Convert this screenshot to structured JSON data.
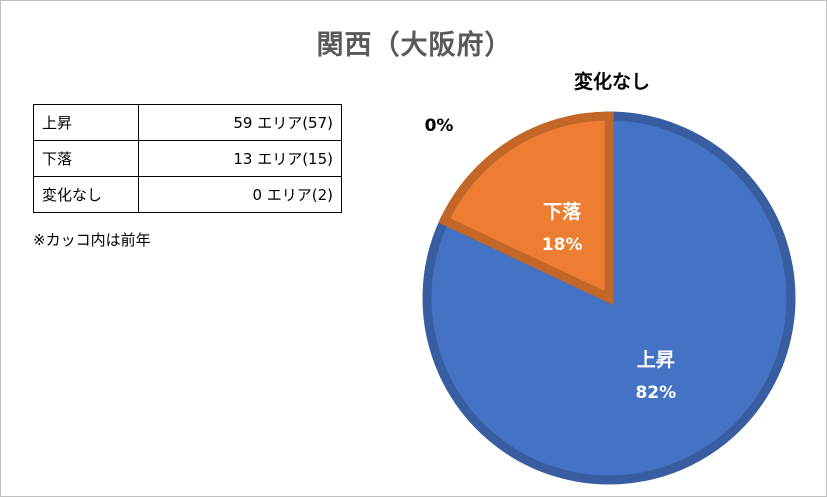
{
  "title": "関西（大阪府）",
  "table": {
    "rows": [
      {
        "label": "上昇",
        "value": "59 エリア(57)"
      },
      {
        "label": "下落",
        "value": "13 エリア(15)"
      },
      {
        "label": "変化なし",
        "value": "0 エリア(2)"
      }
    ],
    "note": "※カッコ内は前年"
  },
  "chart_data": {
    "type": "pie",
    "title": "関西（大阪府）",
    "slices": [
      {
        "label": "上昇",
        "value": 82,
        "value_label": "82%",
        "color": "#4472C4"
      },
      {
        "label": "下落",
        "value": 18,
        "value_label": "18%",
        "color": "#ED7D31"
      },
      {
        "label": "変化なし",
        "value": 0,
        "value_label": "0%",
        "color": "#A5A5A5"
      }
    ]
  }
}
